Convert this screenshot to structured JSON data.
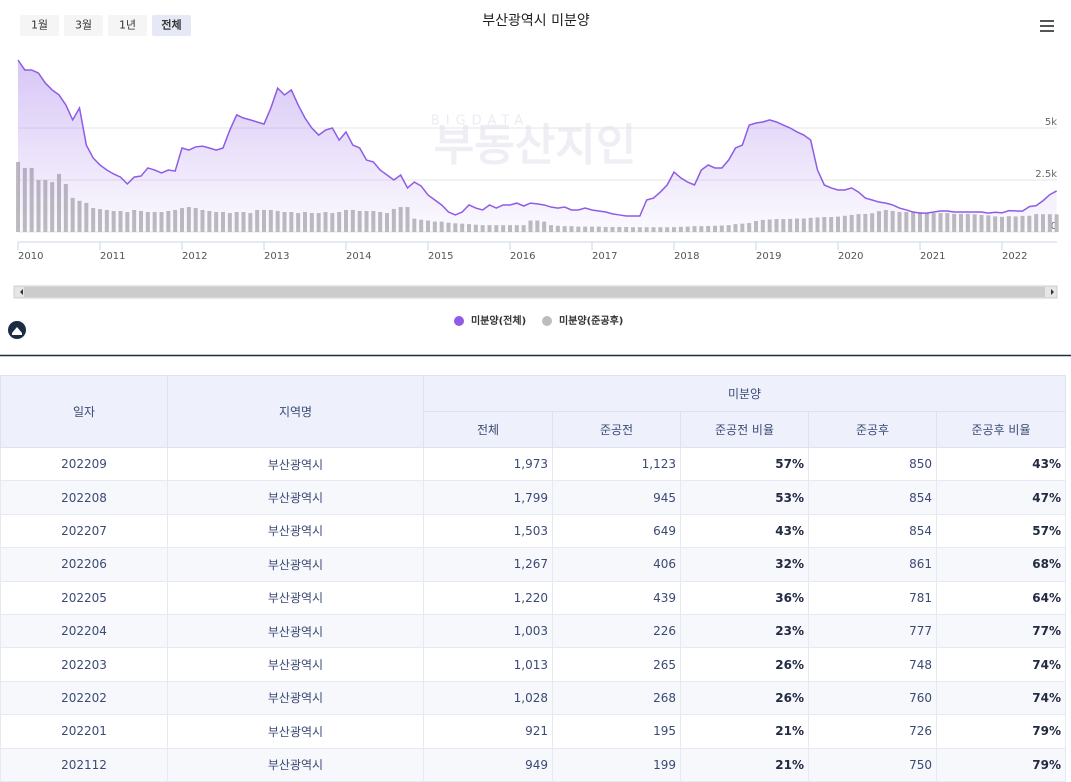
{
  "range_buttons": [
    "1월",
    "3월",
    "1년",
    "전체"
  ],
  "chart_data": {
    "type": "bar_line",
    "title": "부산광역시 미분양",
    "watermark_top": "BIGDATA",
    "watermark": "부동산지인",
    "categories": [
      "2010",
      null,
      null,
      null,
      null,
      null,
      null,
      null,
      null,
      null,
      null,
      null,
      "2011",
      null,
      null,
      null,
      null,
      null,
      null,
      null,
      null,
      null,
      null,
      null,
      "2012",
      null,
      null,
      null,
      null,
      null,
      null,
      null,
      null,
      null,
      null,
      null,
      "2013",
      null,
      null,
      null,
      null,
      null,
      null,
      null,
      null,
      null,
      null,
      null,
      "2014",
      null,
      null,
      null,
      null,
      null,
      null,
      null,
      null,
      null,
      null,
      null,
      "2015",
      null,
      null,
      null,
      null,
      null,
      null,
      null,
      null,
      null,
      null,
      null,
      "2016",
      null,
      null,
      null,
      null,
      null,
      null,
      null,
      null,
      null,
      null,
      null,
      "2017",
      null,
      null,
      null,
      null,
      null,
      null,
      null,
      null,
      null,
      null,
      null,
      "2018",
      null,
      null,
      null,
      null,
      null,
      null,
      null,
      null,
      null,
      null,
      null,
      "2019",
      null,
      null,
      null,
      null,
      null,
      null,
      null,
      null,
      null,
      null,
      null,
      "2020",
      null,
      null,
      null,
      null,
      null,
      null,
      null,
      null,
      null,
      null,
      null,
      "2021",
      null,
      null,
      null,
      null,
      null,
      null,
      null,
      null,
      null,
      null,
      null,
      "2022",
      null,
      null,
      null,
      null,
      null,
      null,
      null,
      null
    ],
    "series": [
      {
        "name": "미분양(전체)",
        "kind": "area",
        "color": "#8e5ce6",
        "values": [
          8270,
          7790,
          7790,
          7640,
          7160,
          6830,
          6590,
          6110,
          5390,
          5960,
          4180,
          3560,
          3220,
          2980,
          2790,
          2640,
          2310,
          2640,
          2690,
          3080,
          2980,
          2840,
          2980,
          2930,
          4040,
          3940,
          4090,
          4130,
          4040,
          3940,
          4040,
          4900,
          5630,
          5480,
          5390,
          5290,
          5190,
          5960,
          6920,
          6590,
          6830,
          6110,
          5480,
          5000,
          4660,
          4900,
          5000,
          4420,
          4810,
          4180,
          4040,
          3460,
          3370,
          2980,
          2740,
          2500,
          2740,
          2120,
          2400,
          2210,
          1780,
          1540,
          1300,
          960,
          820,
          960,
          1300,
          1150,
          1060,
          1300,
          1150,
          1300,
          1300,
          1390,
          1250,
          1390,
          1350,
          1300,
          1200,
          1150,
          1200,
          1060,
          1060,
          1150,
          1060,
          1010,
          960,
          870,
          820,
          770,
          770,
          770,
          1540,
          1630,
          1920,
          2260,
          2880,
          2600,
          2400,
          2260,
          2980,
          3220,
          3080,
          3080,
          3460,
          4040,
          4180,
          5140,
          5240,
          5290,
          5390,
          5290,
          5140,
          5000,
          4810,
          4660,
          4420,
          2980,
          2260,
          2120,
          2020,
          2020,
          2120,
          1920,
          1630,
          1540,
          1440,
          1390,
          1300,
          1150,
          1060,
          960,
          910,
          910,
          960,
          1010,
          1010,
          960,
          960,
          960,
          960,
          960,
          910,
          949,
          921,
          1028,
          1013,
          1003,
          1220,
          1267,
          1503,
          1799,
          1973
        ]
      },
      {
        "name": "미분양(준공후)",
        "kind": "bar",
        "color": "#bdbdbd",
        "values": [
          3370,
          3080,
          3080,
          2500,
          2500,
          2400,
          2790,
          2310,
          1640,
          1500,
          1400,
          1150,
          1100,
          1060,
          1010,
          1010,
          960,
          1060,
          1010,
          960,
          960,
          960,
          1010,
          1060,
          1150,
          1200,
          1150,
          1060,
          1010,
          960,
          960,
          910,
          960,
          960,
          910,
          1060,
          1060,
          1060,
          1010,
          960,
          960,
          910,
          960,
          910,
          910,
          960,
          910,
          960,
          1060,
          1060,
          1010,
          1010,
          1010,
          960,
          910,
          1110,
          1200,
          1200,
          640,
          590,
          550,
          500,
          500,
          450,
          420,
          400,
          380,
          350,
          330,
          330,
          330,
          330,
          330,
          330,
          330,
          550,
          550,
          500,
          330,
          300,
          280,
          280,
          260,
          260,
          260,
          260,
          240,
          240,
          240,
          240,
          230,
          230,
          230,
          230,
          230,
          230,
          230,
          250,
          260,
          280,
          280,
          290,
          300,
          310,
          330,
          380,
          400,
          430,
          530,
          580,
          600,
          620,
          620,
          630,
          650,
          650,
          680,
          700,
          720,
          720,
          740,
          780,
          820,
          860,
          870,
          900,
          1000,
          1060,
          1010,
          960,
          960,
          960,
          960,
          910,
          910,
          910,
          910,
          870,
          870,
          870,
          850,
          820,
          800,
          750,
          726,
          760,
          748,
          777,
          781,
          861,
          854,
          854,
          850
        ]
      }
    ],
    "ylim": [
      0,
      8270
    ],
    "yticks": [
      0,
      {
        "value": 2500,
        "label": "2.5k"
      },
      {
        "value": 5000,
        "label": "5k"
      }
    ],
    "grid": true
  },
  "table": {
    "header_top": [
      "일자",
      "지역명",
      "미분양"
    ],
    "header_sub": [
      "전체",
      "준공전",
      "준공전 비율",
      "준공후",
      "준공후 비율"
    ],
    "rows": [
      [
        "202209",
        "부산광역시",
        "1,973",
        "1,123",
        "57%",
        "850",
        "43%"
      ],
      [
        "202208",
        "부산광역시",
        "1,799",
        "945",
        "53%",
        "854",
        "47%"
      ],
      [
        "202207",
        "부산광역시",
        "1,503",
        "649",
        "43%",
        "854",
        "57%"
      ],
      [
        "202206",
        "부산광역시",
        "1,267",
        "406",
        "32%",
        "861",
        "68%"
      ],
      [
        "202205",
        "부산광역시",
        "1,220",
        "439",
        "36%",
        "781",
        "64%"
      ],
      [
        "202204",
        "부산광역시",
        "1,003",
        "226",
        "23%",
        "777",
        "77%"
      ],
      [
        "202203",
        "부산광역시",
        "1,013",
        "265",
        "26%",
        "748",
        "74%"
      ],
      [
        "202202",
        "부산광역시",
        "1,028",
        "268",
        "26%",
        "760",
        "74%"
      ],
      [
        "202201",
        "부산광역시",
        "921",
        "195",
        "21%",
        "726",
        "79%"
      ],
      [
        "202112",
        "부산광역시",
        "949",
        "199",
        "21%",
        "750",
        "79%"
      ]
    ]
  }
}
